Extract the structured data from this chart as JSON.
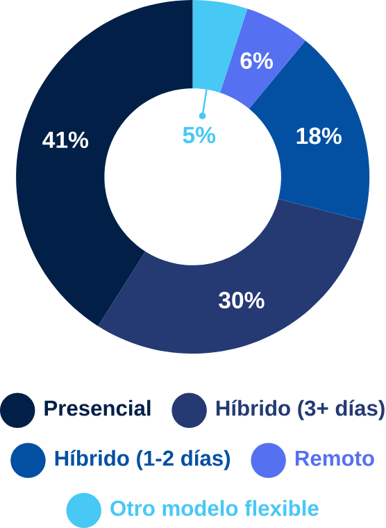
{
  "chart_data": {
    "type": "donut",
    "categories": [
      "Presencial",
      "Híbrido (3+ días)",
      "Híbrido (1-2 días)",
      "Remoto",
      "Otro modelo flexible"
    ],
    "values": [
      41,
      30,
      18,
      6,
      5
    ],
    "colors": [
      "#021f47",
      "#253a73",
      "#0350a3",
      "#5670f2",
      "#47c8f5"
    ],
    "value_labels": [
      "41%",
      "30%",
      "18%",
      "6%",
      "5%"
    ],
    "legend": "bottom"
  }
}
